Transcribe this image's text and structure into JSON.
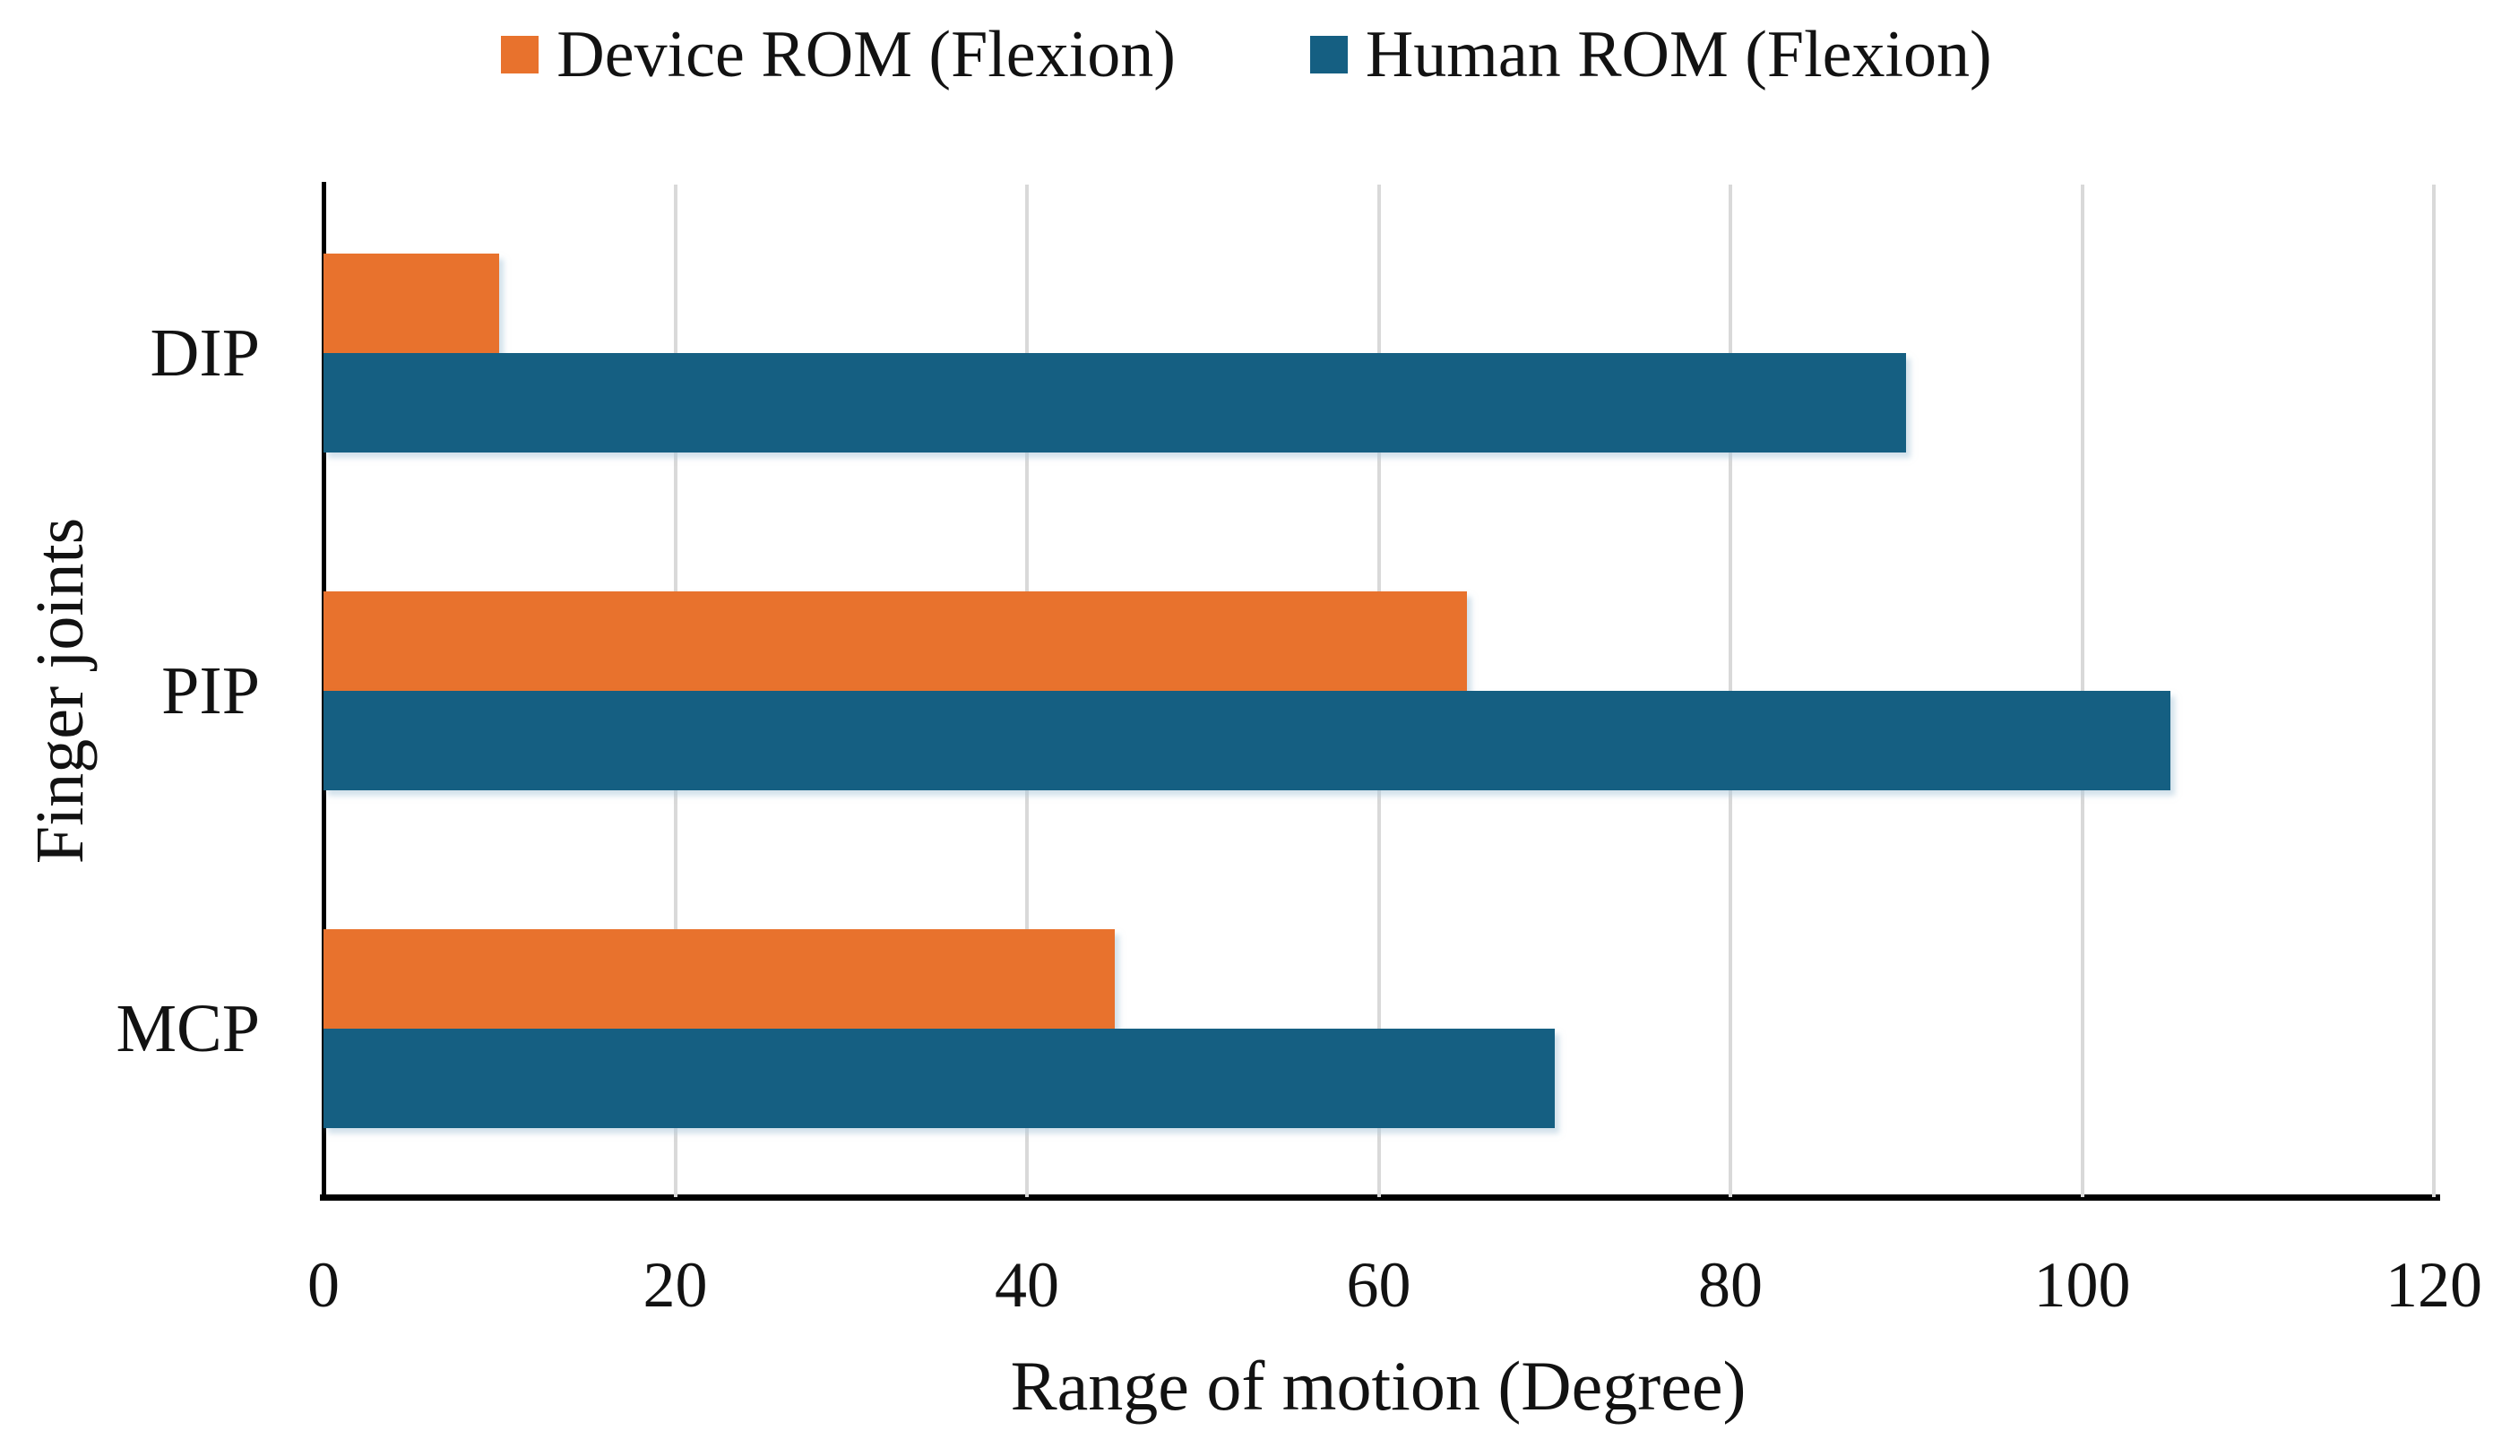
{
  "page": {
    "background": "#ffffff",
    "text_color": "#121212"
  },
  "legend": {
    "position": "top",
    "items": [
      {
        "label": "Device ROM (Flexion)",
        "color": "#E8722D"
      },
      {
        "label": "Human ROM (Flexion)",
        "color": "#155F82"
      }
    ]
  },
  "chart_data": {
    "type": "bar",
    "orientation": "horizontal",
    "title": "",
    "xlabel": "Range of motion (Degree)",
    "ylabel": "Finger joints",
    "categories": [
      "DIP",
      "PIP",
      "MCP"
    ],
    "series": [
      {
        "name": "Device ROM (Flexion)",
        "color": "#E8722D",
        "values": [
          10,
          65,
          45
        ]
      },
      {
        "name": "Human ROM (Flexion)",
        "color": "#155F82",
        "values": [
          90,
          105,
          70
        ]
      }
    ],
    "xlim": [
      0,
      120
    ],
    "xticks": [
      0,
      20,
      40,
      60,
      80,
      100,
      120
    ],
    "grid": "vertical",
    "gridline_color": "#d9d9d9",
    "axis_color": "#000000",
    "legend_position": "top"
  }
}
